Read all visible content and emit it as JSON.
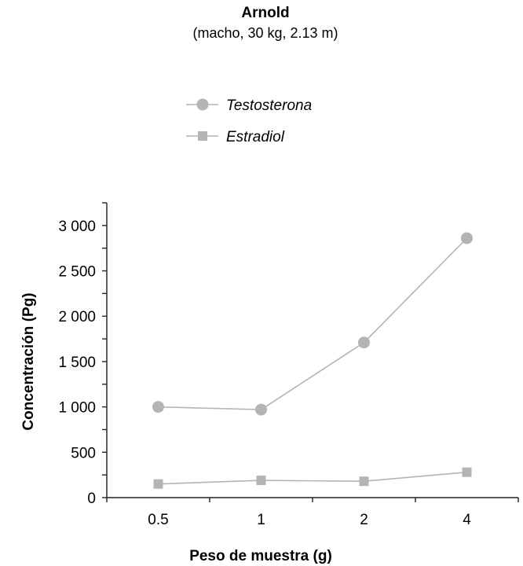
{
  "chart_data": {
    "type": "line",
    "title": "Arnold",
    "subtitle": "(macho, 30 kg, 2.13 m)",
    "xlabel": "Peso de muestra (g)",
    "ylabel": "Concentración (Pg)",
    "categories": [
      "0.5",
      "1",
      "2",
      "4"
    ],
    "ylim": [
      0,
      3250
    ],
    "yticks": [
      0,
      500,
      1000,
      1500,
      2000,
      2500,
      3000
    ],
    "ytick_labels": [
      "0",
      "500",
      "1 000",
      "1 500",
      "2 000",
      "2 500",
      "3 000"
    ],
    "legend_position": "top-center",
    "grid": false,
    "series": [
      {
        "name": "Testosterona",
        "marker": "circle",
        "color": "#b4b4b4",
        "values": [
          1000,
          970,
          1710,
          2860
        ]
      },
      {
        "name": "Estradiol",
        "marker": "square",
        "color": "#b4b4b4",
        "values": [
          150,
          190,
          180,
          280
        ]
      }
    ]
  }
}
